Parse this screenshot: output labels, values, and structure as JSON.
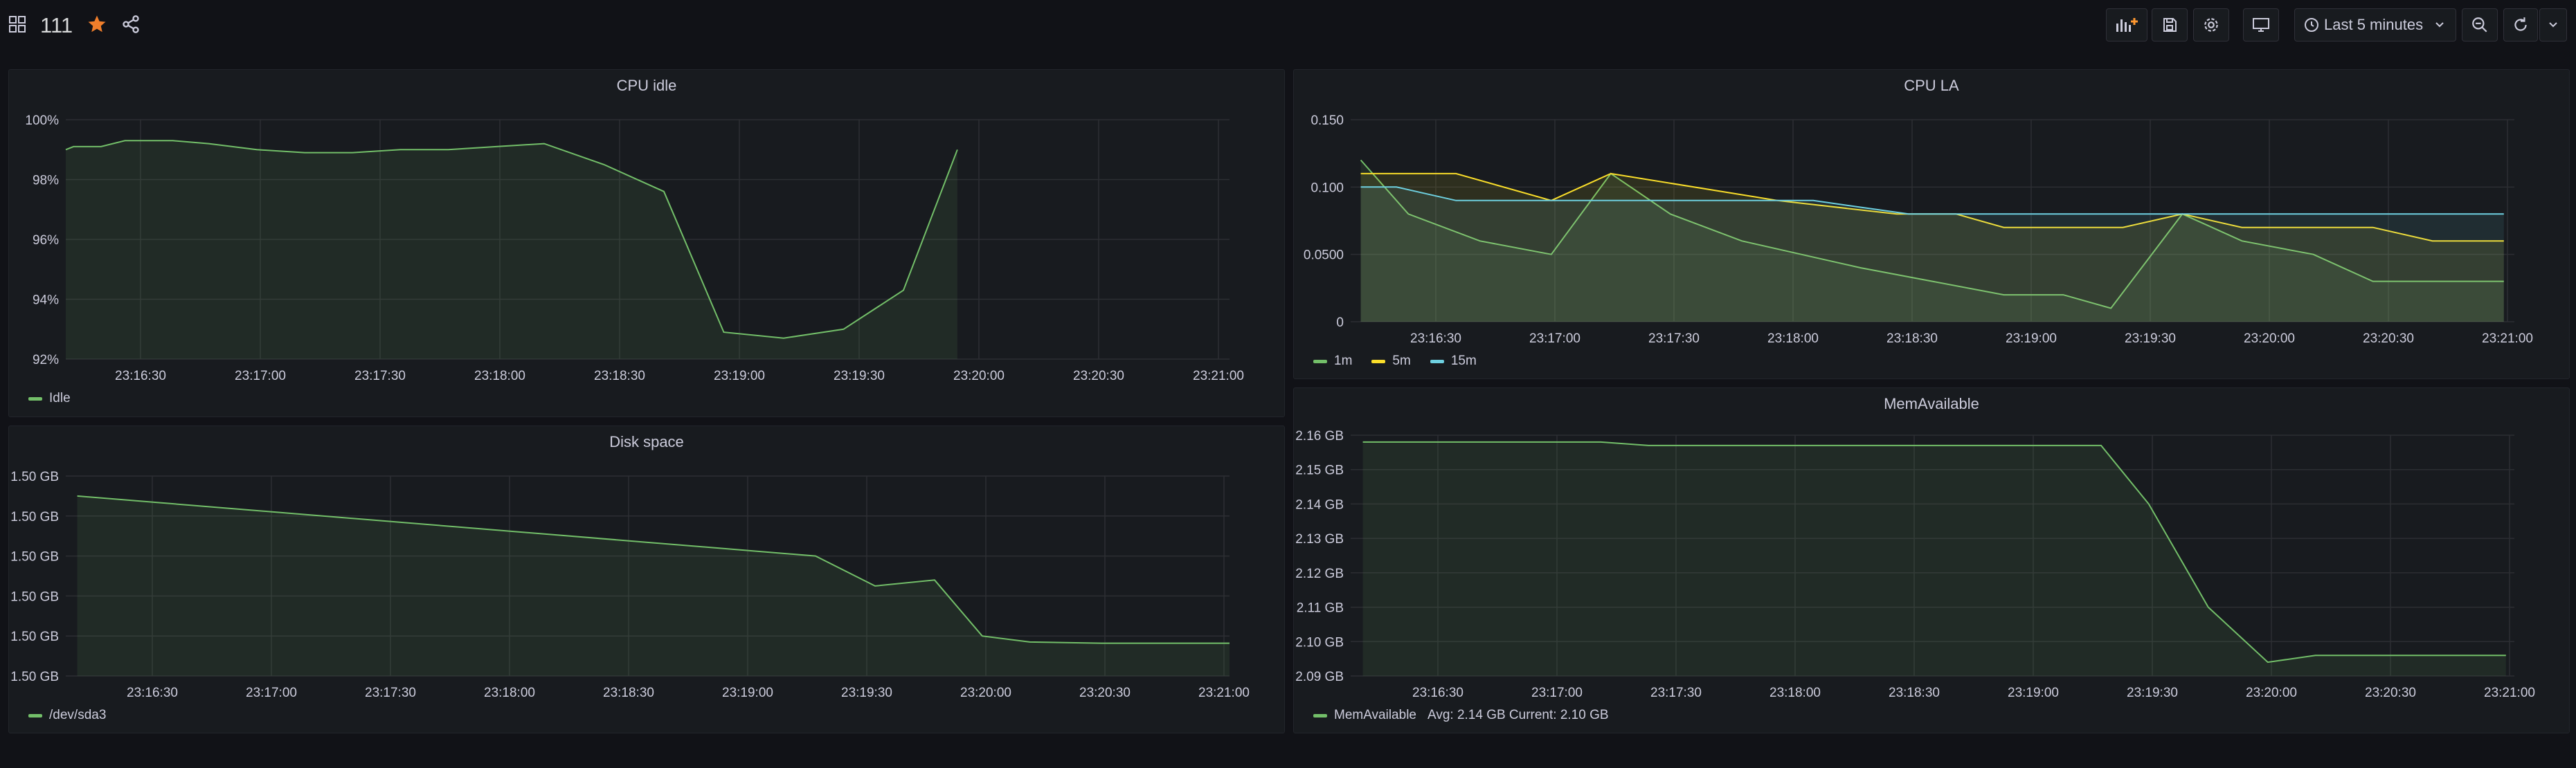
{
  "header": {
    "title": "111",
    "time_range": "Last 5 minutes"
  },
  "colors": {
    "green": "#73bf69",
    "yellow": "#fade2a",
    "blue": "#5794f2",
    "cyan": "#6ed0e0",
    "star": "#f07e2b",
    "orange": "#ff9830"
  },
  "panels": [
    {
      "title": "CPU idle",
      "chart_data": {
        "type": "area",
        "x_ticks": [
          "23:16:30",
          "23:17:00",
          "23:17:30",
          "23:18:00",
          "23:18:30",
          "23:19:00",
          "23:19:30",
          "23:20:00",
          "23:20:30",
          "23:21:00"
        ],
        "y_ticks": [
          "100%",
          "98%",
          "96%",
          "94%",
          "92%"
        ],
        "ylim": [
          92,
          100
        ],
        "grid": true,
        "legend_placement": "bottom-left",
        "series": [
          {
            "name": "Idle",
            "color": "#73bf69",
            "points": [
              [
                0,
                99.0
              ],
              [
                0.07,
                99.1
              ],
              [
                0.3,
                99.1
              ],
              [
                0.5,
                99.3
              ],
              [
                0.9,
                99.3
              ],
              [
                1.2,
                99.2
              ],
              [
                1.6,
                99.0
              ],
              [
                2.0,
                98.9
              ],
              [
                2.4,
                98.9
              ],
              [
                2.8,
                99.0
              ],
              [
                3.2,
                99.0
              ],
              [
                3.6,
                99.1
              ],
              [
                4.0,
                99.2
              ],
              [
                4.5,
                98.5
              ],
              [
                5.0,
                97.6
              ],
              [
                5.5,
                92.9
              ],
              [
                6.0,
                92.7
              ],
              [
                6.5,
                93.0
              ],
              [
                7.0,
                94.3
              ],
              [
                7.45,
                99.0
              ]
            ]
          }
        ]
      }
    },
    {
      "title": "CPU LA",
      "chart_data": {
        "type": "area",
        "x_ticks": [
          "23:16:30",
          "23:17:00",
          "23:17:30",
          "23:18:00",
          "23:18:30",
          "23:19:00",
          "23:19:30",
          "23:20:00",
          "23:20:30",
          "23:21:00"
        ],
        "y_ticks": [
          "0.150",
          "0.100",
          "0.0500",
          "0"
        ],
        "ylim": [
          0,
          0.15
        ],
        "grid": true,
        "legend_placement": "bottom-left",
        "series": [
          {
            "name": "1m",
            "color": "#73bf69",
            "points": [
              [
                0,
                0.12
              ],
              [
                0.4,
                0.08
              ],
              [
                1,
                0.06
              ],
              [
                1.6,
                0.05
              ],
              [
                2.1,
                0.11
              ],
              [
                2.6,
                0.08
              ],
              [
                3.2,
                0.06
              ],
              [
                3.7,
                0.05
              ],
              [
                4.2,
                0.04
              ],
              [
                4.8,
                0.03
              ],
              [
                5.4,
                0.02
              ],
              [
                5.9,
                0.02
              ],
              [
                6.3,
                0.01
              ],
              [
                6.9,
                0.08
              ],
              [
                7.4,
                0.06
              ],
              [
                8.0,
                0.05
              ],
              [
                8.5,
                0.03
              ],
              [
                9.6,
                0.03
              ]
            ]
          },
          {
            "name": "5m",
            "color": "#fade2a",
            "points": [
              [
                0,
                0.11
              ],
              [
                0.8,
                0.11
              ],
              [
                1.6,
                0.09
              ],
              [
                2.1,
                0.11
              ],
              [
                3.5,
                0.09
              ],
              [
                4.5,
                0.08
              ],
              [
                5.0,
                0.08
              ],
              [
                5.4,
                0.07
              ],
              [
                6.4,
                0.07
              ],
              [
                6.9,
                0.08
              ],
              [
                7.4,
                0.07
              ],
              [
                8.5,
                0.07
              ],
              [
                9.0,
                0.06
              ],
              [
                9.6,
                0.06
              ]
            ]
          },
          {
            "name": "15m",
            "color": "#6ed0e0",
            "points": [
              [
                0,
                0.1
              ],
              [
                0.3,
                0.1
              ],
              [
                0.8,
                0.09
              ],
              [
                3.8,
                0.09
              ],
              [
                4.6,
                0.08
              ],
              [
                9.6,
                0.08
              ]
            ]
          }
        ]
      }
    },
    {
      "title": "Disk space",
      "chart_data": {
        "type": "area",
        "x_ticks": [
          "23:16:30",
          "23:17:00",
          "23:17:30",
          "23:18:00",
          "23:18:30",
          "23:19:00",
          "23:19:30",
          "23:20:00",
          "23:20:30",
          "23:21:00"
        ],
        "y_ticks": [
          "1.50 GB",
          "1.50 GB",
          "1.50 GB",
          "1.50 GB",
          "1.50 GB",
          "1.50 GB"
        ],
        "ylim": [
          0,
          5
        ],
        "grid": true,
        "legend_placement": "bottom-left",
        "series": [
          {
            "name": "/dev/sda3",
            "color": "#73bf69",
            "points": [
              [
                0,
                4.5
              ],
              [
                6.2,
                3.0
              ],
              [
                6.7,
                2.25
              ],
              [
                7.2,
                2.4
              ],
              [
                7.6,
                1.0
              ],
              [
                8.0,
                0.85
              ],
              [
                8.6,
                0.82
              ],
              [
                9.7,
                0.82
              ]
            ]
          }
        ]
      }
    },
    {
      "title": "MemAvailable",
      "chart_data": {
        "type": "area",
        "x_ticks": [
          "23:16:30",
          "23:17:00",
          "23:17:30",
          "23:18:00",
          "23:18:30",
          "23:19:00",
          "23:19:30",
          "23:20:00",
          "23:20:30",
          "23:21:00"
        ],
        "y_ticks": [
          "2.16 GB",
          "2.15 GB",
          "2.14 GB",
          "2.13 GB",
          "2.12 GB",
          "2.11 GB",
          "2.10 GB",
          "2.09 GB"
        ],
        "ylim": [
          2.09,
          2.16
        ],
        "grid": true,
        "legend_placement": "bottom-left",
        "series": [
          {
            "name": "MemAvailable",
            "color": "#73bf69",
            "stats": "Avg: 2.14 GB  Current: 2.10 GB",
            "points": [
              [
                0,
                2.158
              ],
              [
                2.0,
                2.158
              ],
              [
                2.4,
                2.157
              ],
              [
                6.2,
                2.157
              ],
              [
                6.6,
                2.14
              ],
              [
                7.1,
                2.11
              ],
              [
                7.6,
                2.094
              ],
              [
                8.0,
                2.096
              ],
              [
                8.6,
                2.096
              ],
              [
                9.6,
                2.096
              ]
            ]
          }
        ]
      }
    }
  ]
}
